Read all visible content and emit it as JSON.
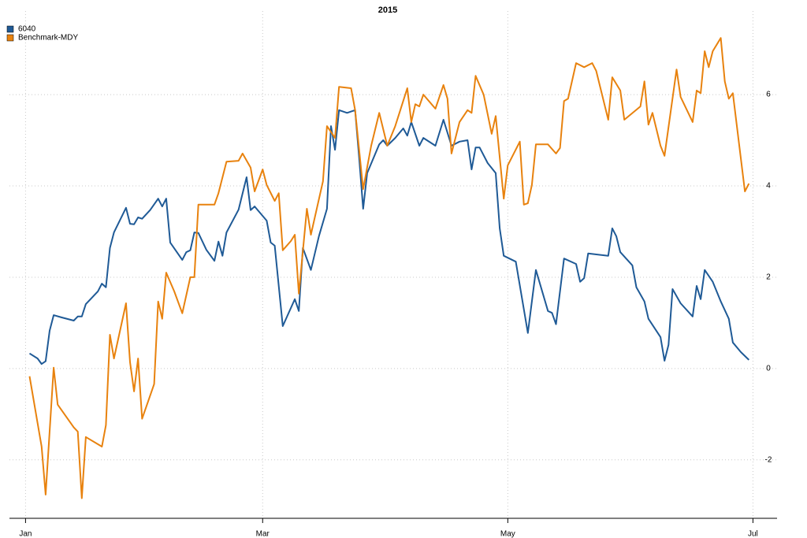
{
  "chart_data": {
    "type": "line",
    "title": "2015",
    "xlim": [
      -4,
      187
    ],
    "xticks": [
      {
        "value": 0,
        "label": "Jan"
      },
      {
        "value": 59,
        "label": "Mar"
      },
      {
        "value": 120,
        "label": "May"
      },
      {
        "value": 181,
        "label": "Jul"
      }
    ],
    "ylim": [
      -3.28,
      7.83
    ],
    "yticks": [
      -2,
      0,
      2,
      4,
      6
    ],
    "grid": true,
    "legend": "topleft",
    "series": [
      {
        "name": "6040",
        "color": "#1f5a96",
        "x": [
          1,
          3,
          4,
          5,
          6,
          7,
          9,
          12,
          13,
          14,
          15,
          18,
          19,
          20,
          21,
          22,
          25,
          26,
          27,
          28,
          29,
          31,
          33,
          34,
          35,
          36,
          39,
          40,
          41,
          42,
          43,
          45,
          47,
          48,
          49,
          50,
          53,
          55,
          56,
          57,
          60,
          61,
          62,
          64,
          67,
          68,
          69,
          71,
          73,
          75,
          76,
          77,
          78,
          80,
          82,
          83,
          84,
          85,
          88,
          89,
          90,
          92,
          94,
          95,
          96,
          98,
          99,
          102,
          104,
          106,
          108,
          110,
          111,
          112,
          113,
          115,
          117,
          118,
          119,
          122,
          125,
          127,
          130,
          131,
          132,
          134,
          137,
          138,
          139,
          140,
          145,
          146,
          147,
          148,
          151,
          152,
          154,
          155,
          158,
          159,
          160,
          161,
          163,
          166,
          167,
          168,
          169,
          171,
          173,
          175,
          176,
          178,
          180
        ],
        "values": [
          0.33,
          0.22,
          0.1,
          0.16,
          0.83,
          1.17,
          1.12,
          1.05,
          1.14,
          1.14,
          1.41,
          1.69,
          1.86,
          1.78,
          2.64,
          2.98,
          3.52,
          3.17,
          3.16,
          3.31,
          3.28,
          3.47,
          3.72,
          3.55,
          3.72,
          2.76,
          2.38,
          2.55,
          2.59,
          2.98,
          2.97,
          2.6,
          2.36,
          2.78,
          2.47,
          2.98,
          3.48,
          4.19,
          3.47,
          3.55,
          3.24,
          2.76,
          2.69,
          0.93,
          1.52,
          1.26,
          2.64,
          2.16,
          2.9,
          3.5,
          5.31,
          4.79,
          5.66,
          5.6,
          5.66,
          4.62,
          3.5,
          4.28,
          4.91,
          5.0,
          4.88,
          5.05,
          5.26,
          5.1,
          5.4,
          4.88,
          5.05,
          4.88,
          5.45,
          4.88,
          4.97,
          5.0,
          4.36,
          4.84,
          4.84,
          4.5,
          4.28,
          3.07,
          2.47,
          2.34,
          0.78,
          2.16,
          1.26,
          1.22,
          0.97,
          2.41,
          2.29,
          1.9,
          1.98,
          2.52,
          2.47,
          3.07,
          2.9,
          2.55,
          2.26,
          1.78,
          1.47,
          1.09,
          0.69,
          0.17,
          0.52,
          1.74,
          1.43,
          1.14,
          1.81,
          1.52,
          2.16,
          1.9,
          1.47,
          1.09,
          0.57,
          0.36,
          0.19
        ]
      },
      {
        "name": "Benchmark-MDY",
        "color": "#e8820e",
        "x": [
          1,
          4,
          5,
          7,
          8,
          12,
          13,
          14,
          15,
          19,
          20,
          21,
          22,
          25,
          26,
          27,
          28,
          29,
          32,
          33,
          34,
          35,
          37,
          39,
          41,
          42,
          43,
          47,
          48,
          50,
          53,
          54,
          56,
          57,
          59,
          60,
          62,
          63,
          64,
          66,
          67,
          68,
          70,
          71,
          74,
          75,
          77,
          78,
          81,
          82,
          84,
          86,
          88,
          90,
          92,
          95,
          96,
          97,
          98,
          99,
          102,
          104,
          105,
          106,
          108,
          110,
          111,
          112,
          114,
          116,
          117,
          119,
          120,
          123,
          124,
          125,
          126,
          127,
          130,
          132,
          133,
          134,
          135,
          137,
          139,
          141,
          142,
          145,
          146,
          148,
          149,
          153,
          154,
          155,
          156,
          158,
          159,
          162,
          163,
          166,
          167,
          168,
          169,
          170,
          171,
          173,
          174,
          175,
          176,
          179,
          180
        ],
        "values": [
          -0.17,
          -1.71,
          -2.76,
          0.02,
          -0.79,
          -1.29,
          -1.38,
          -2.84,
          -1.5,
          -1.71,
          -1.24,
          0.74,
          0.22,
          1.43,
          0.14,
          -0.5,
          0.22,
          -1.1,
          -0.34,
          1.47,
          1.09,
          2.1,
          1.69,
          1.21,
          2.0,
          2.0,
          3.59,
          3.59,
          3.84,
          4.53,
          4.55,
          4.71,
          4.4,
          3.88,
          4.36,
          4.02,
          3.67,
          3.84,
          2.59,
          2.79,
          2.93,
          1.64,
          3.5,
          2.93,
          4.1,
          5.31,
          5.05,
          6.17,
          6.14,
          5.66,
          3.93,
          4.88,
          5.6,
          4.88,
          5.31,
          6.14,
          5.4,
          5.79,
          5.74,
          6.0,
          5.69,
          6.21,
          5.91,
          4.71,
          5.4,
          5.66,
          5.6,
          6.41,
          6.0,
          5.14,
          5.53,
          3.72,
          4.45,
          4.97,
          3.59,
          3.62,
          4.02,
          4.91,
          4.91,
          4.71,
          4.83,
          5.86,
          5.91,
          6.69,
          6.6,
          6.69,
          6.52,
          5.45,
          6.38,
          6.09,
          5.45,
          5.74,
          6.29,
          5.34,
          5.6,
          4.88,
          4.66,
          6.55,
          5.95,
          5.4,
          6.09,
          6.03,
          6.95,
          6.6,
          6.95,
          7.24,
          6.29,
          5.91,
          6.03,
          3.88,
          4.05
        ]
      }
    ]
  }
}
